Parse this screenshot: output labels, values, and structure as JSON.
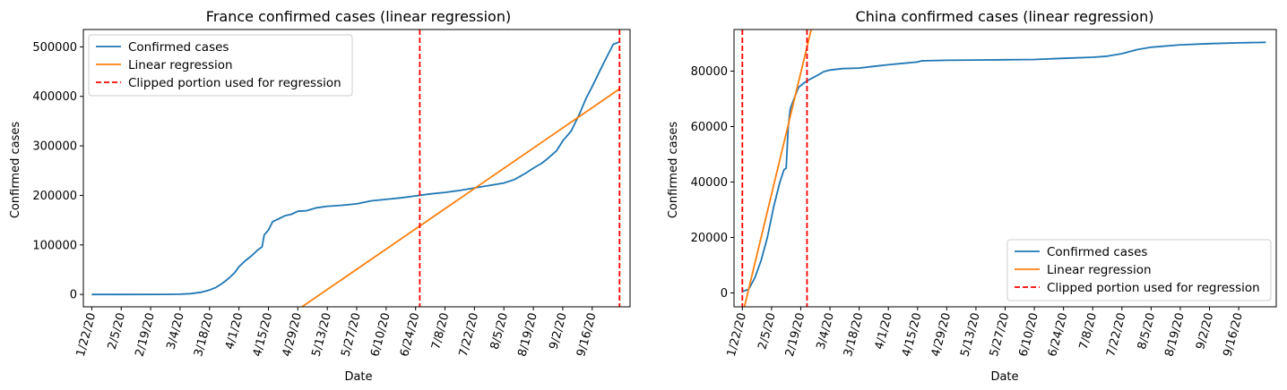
{
  "chart_data": [
    {
      "type": "line",
      "title": "France confirmed cases (linear regression)",
      "xlabel": "Date",
      "ylabel": "Confirmed cases",
      "xticks": [
        "1/22/20",
        "2/5/20",
        "2/19/20",
        "3/4/20",
        "3/18/20",
        "4/1/20",
        "4/15/20",
        "4/29/20",
        "5/13/20",
        "5/27/20",
        "6/10/20",
        "6/24/20",
        "7/8/20",
        "7/22/20",
        "8/5/20",
        "8/19/20",
        "9/2/20",
        "9/16/20"
      ],
      "yticks": [
        0,
        100000,
        200000,
        300000,
        400000,
        500000
      ],
      "xlim": [
        "1/22/20",
        "9/30/20"
      ],
      "ylim": [
        -25000,
        535000
      ],
      "grid": false,
      "legend": "upper-left",
      "series": [
        {
          "name": "Confirmed cases",
          "color": "#1f77b4",
          "style": "solid",
          "points": [
            [
              "1/22/20",
              0
            ],
            [
              "2/26/20",
              50
            ],
            [
              "3/4/20",
              500
            ],
            [
              "3/9/20",
              1500
            ],
            [
              "3/14/20",
              4500
            ],
            [
              "3/18/20",
              9000
            ],
            [
              "3/21/20",
              14000
            ],
            [
              "3/24/20",
              22000
            ],
            [
              "3/27/20",
              32000
            ],
            [
              "3/30/20",
              44000
            ],
            [
              "4/1/20",
              56000
            ],
            [
              "4/4/20",
              68000
            ],
            [
              "4/7/20",
              78000
            ],
            [
              "4/10/20",
              90000
            ],
            [
              "4/12/20",
              96000
            ],
            [
              "4/13/20",
              120000
            ],
            [
              "4/15/20",
              130000
            ],
            [
              "4/17/20",
              147000
            ],
            [
              "4/20/20",
              153000
            ],
            [
              "4/23/20",
              159000
            ],
            [
              "4/26/20",
              162000
            ],
            [
              "4/29/20",
              168000
            ],
            [
              "5/3/20",
              169000
            ],
            [
              "5/8/20",
              175000
            ],
            [
              "5/13/20",
              178000
            ],
            [
              "5/20/20",
              180000
            ],
            [
              "5/27/20",
              183000
            ],
            [
              "6/3/20",
              189000
            ],
            [
              "6/10/20",
              192000
            ],
            [
              "6/17/20",
              195000
            ],
            [
              "6/24/20",
              199000
            ],
            [
              "7/1/20",
              203000
            ],
            [
              "7/8/20",
              206000
            ],
            [
              "7/15/20",
              210000
            ],
            [
              "7/22/20",
              215000
            ],
            [
              "7/29/20",
              220000
            ],
            [
              "8/5/20",
              225000
            ],
            [
              "8/10/20",
              232000
            ],
            [
              "8/15/20",
              244000
            ],
            [
              "8/19/20",
              255000
            ],
            [
              "8/23/20",
              265000
            ],
            [
              "8/26/20",
              275000
            ],
            [
              "8/30/20",
              290000
            ],
            [
              "9/2/20",
              310000
            ],
            [
              "9/6/20",
              330000
            ],
            [
              "9/10/20",
              365000
            ],
            [
              "9/13/20",
              395000
            ],
            [
              "9/16/20",
              420000
            ],
            [
              "9/20/20",
              455000
            ],
            [
              "9/23/20",
              480000
            ],
            [
              "9/26/20",
              505000
            ],
            [
              "9/29/20",
              510000
            ]
          ]
        },
        {
          "name": "Linear regression",
          "color": "#ff7f0e",
          "style": "solid",
          "points": [
            [
              "5/1/20",
              -25000
            ],
            [
              "9/29/20",
              415000
            ]
          ]
        },
        {
          "name": "Clipped portion used for regression",
          "color": "#ff0000",
          "style": "dashed",
          "vlines": [
            "6/26/20",
            "9/29/20"
          ]
        }
      ]
    },
    {
      "type": "line",
      "title": "China confirmed cases (linear regression)",
      "xlabel": "Date",
      "ylabel": "Confirmed cases",
      "xticks": [
        "1/22/20",
        "2/5/20",
        "2/19/20",
        "3/4/20",
        "3/18/20",
        "4/1/20",
        "4/15/20",
        "4/29/20",
        "5/13/20",
        "5/27/20",
        "6/10/20",
        "6/24/20",
        "7/8/20",
        "7/22/20",
        "8/5/20",
        "8/19/20",
        "9/2/20",
        "9/16/20"
      ],
      "yticks": [
        0,
        20000,
        40000,
        60000,
        80000
      ],
      "xlim": [
        "1/22/20",
        "9/30/20"
      ],
      "ylim": [
        -5000,
        95000
      ],
      "grid": false,
      "legend": "lower-right",
      "series": [
        {
          "name": "Confirmed cases",
          "color": "#1f77b4",
          "style": "solid",
          "points": [
            [
              "1/22/20",
              550
            ],
            [
              "1/25/20",
              1300
            ],
            [
              "1/28/20",
              5500
            ],
            [
              "1/31/20",
              11800
            ],
            [
              "2/3/20",
              20000
            ],
            [
              "2/6/20",
              31000
            ],
            [
              "2/9/20",
              40000
            ],
            [
              "2/11/20",
              44500
            ],
            [
              "2/12/20",
              45000
            ],
            [
              "2/13/20",
              60000
            ],
            [
              "2/14/20",
              66500
            ],
            [
              "2/16/20",
              70500
            ],
            [
              "2/18/20",
              74200
            ],
            [
              "2/21/20",
              76000
            ],
            [
              "2/24/20",
              77300
            ],
            [
              "2/27/20",
              78500
            ],
            [
              "3/1/20",
              79800
            ],
            [
              "3/4/20",
              80400
            ],
            [
              "3/10/20",
              80900
            ],
            [
              "3/18/20",
              81100
            ],
            [
              "3/25/20",
              81700
            ],
            [
              "4/1/20",
              82300
            ],
            [
              "4/8/20",
              82800
            ],
            [
              "4/15/20",
              83300
            ],
            [
              "4/17/20",
              83700
            ],
            [
              "4/29/20",
              83900
            ],
            [
              "5/13/20",
              84000
            ],
            [
              "5/27/20",
              84100
            ],
            [
              "6/10/20",
              84200
            ],
            [
              "6/24/20",
              84600
            ],
            [
              "7/8/20",
              85000
            ],
            [
              "7/15/20",
              85400
            ],
            [
              "7/22/20",
              86300
            ],
            [
              "7/29/20",
              87700
            ],
            [
              "8/5/20",
              88600
            ],
            [
              "8/19/20",
              89500
            ],
            [
              "9/2/20",
              89900
            ],
            [
              "9/16/20",
              90200
            ],
            [
              "9/29/20",
              90400
            ]
          ]
        },
        {
          "name": "Linear regression",
          "color": "#ff7f0e",
          "style": "solid",
          "points": [
            [
              "1/23/20",
              -5000
            ],
            [
              "2/24/20",
              95000
            ]
          ]
        },
        {
          "name": "Clipped portion used for regression",
          "color": "#ff0000",
          "style": "dashed",
          "vlines": [
            "1/22/20",
            "2/22/20"
          ]
        }
      ]
    }
  ]
}
